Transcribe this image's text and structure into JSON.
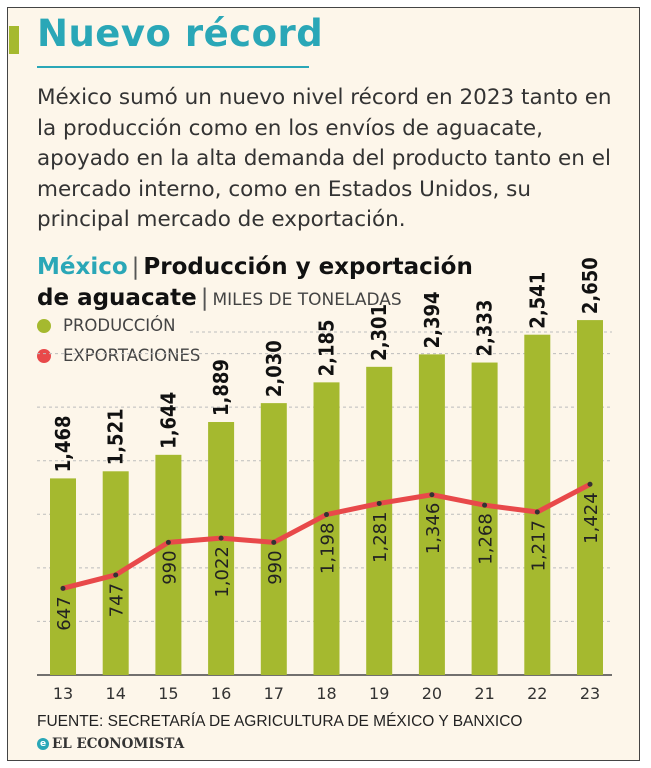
{
  "header": {
    "title": "Nuevo récord",
    "lede": "México sumó un nuevo nivel récord en 2023 tanto en la producción como en los envíos de aguacate, apoyado en la alta demanda del producto tanto en el mercado interno, como en Estados Unidos, su principal mercado de exportación."
  },
  "colors": {
    "accent": "#2aa7b7",
    "bar": "#a5b92f",
    "line": "#e8494a",
    "grid": "#bdbdbd",
    "background": "#fdf6ea"
  },
  "chart_data": {
    "type": "bar",
    "heading": {
      "country": "México",
      "separator": "|",
      "title_part1": "Producción y exportación",
      "title_part2": "de aguacate",
      "units": "MILES DE TONELADAS"
    },
    "categories": [
      "13",
      "14",
      "15",
      "16",
      "17",
      "18",
      "19",
      "20",
      "21",
      "22",
      "23"
    ],
    "series": [
      {
        "name": "PRODUCCIÓN",
        "kind": "bar",
        "color": "#a5b92f",
        "values": [
          1468,
          1521,
          1644,
          1889,
          2030,
          2185,
          2301,
          2394,
          2333,
          2541,
          2650
        ],
        "labels": [
          "1,468",
          "1,521",
          "1,644",
          "1,889",
          "2,030",
          "2,185",
          "2,301",
          "2,394",
          "2,333",
          "2,541",
          "2,650"
        ]
      },
      {
        "name": "EXPORTACIONES",
        "kind": "line",
        "color": "#e8494a",
        "values": [
          647,
          747,
          990,
          1022,
          990,
          1198,
          1281,
          1346,
          1268,
          1217,
          1424
        ],
        "labels": [
          "647",
          "747",
          "990",
          "1,022",
          "990",
          "1,198",
          "1,281",
          "1,346",
          "1,268",
          "1,217",
          "1,424"
        ]
      }
    ],
    "ylim": [
      0,
      2800
    ],
    "grid": true,
    "legend": "top-left"
  },
  "footer": {
    "source": "FUENTE: SECRETARÍA DE AGRICULTURA DE MÉXICO Y BANXICO",
    "brand": "EL ECONOMISTA",
    "brand_icon": "e"
  }
}
